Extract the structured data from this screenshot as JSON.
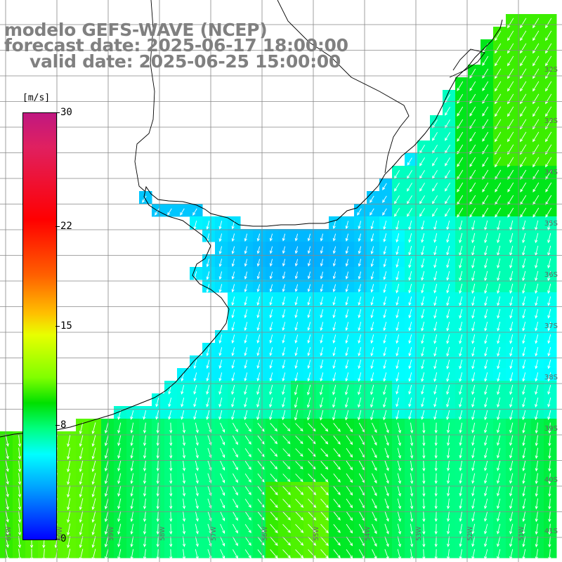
{
  "title": {
    "model": "modelo GEFS-WAVE (NCEP)",
    "forecast": "forecast date: 2025-06-17 18:00:00",
    "valid": "valid date: 2025-06-25 15:00:00"
  },
  "colorbar": {
    "unit": "[m/s]",
    "ticks": [
      "30",
      "22",
      "15",
      "8",
      "0"
    ],
    "tick_values": [
      30,
      22,
      15,
      8,
      0
    ],
    "range": [
      0,
      30
    ],
    "colors": [
      "#0000ff",
      "#0050ff",
      "#00a0ff",
      "#00ffff",
      "#00ff80",
      "#00e000",
      "#80ff00",
      "#e8ff00",
      "#ffc000",
      "#ff6000",
      "#ff0000",
      "#e02060",
      "#c01880"
    ]
  },
  "lat_labels": [
    "32S",
    "33S",
    "34S",
    "35S",
    "36S",
    "37S",
    "38S",
    "39S",
    "40S",
    "41S"
  ],
  "lon_labels": [
    "61W",
    "60W",
    "59W",
    "58W",
    "57W",
    "56W",
    "55W",
    "54W",
    "53W",
    "52W",
    "51W"
  ],
  "chart_data": {
    "type": "heatmap",
    "variable": "wind speed",
    "unit": "m/s",
    "vrange": [
      0,
      30
    ],
    "arrows": "white vectors, predominantly from north / northwest"
  }
}
